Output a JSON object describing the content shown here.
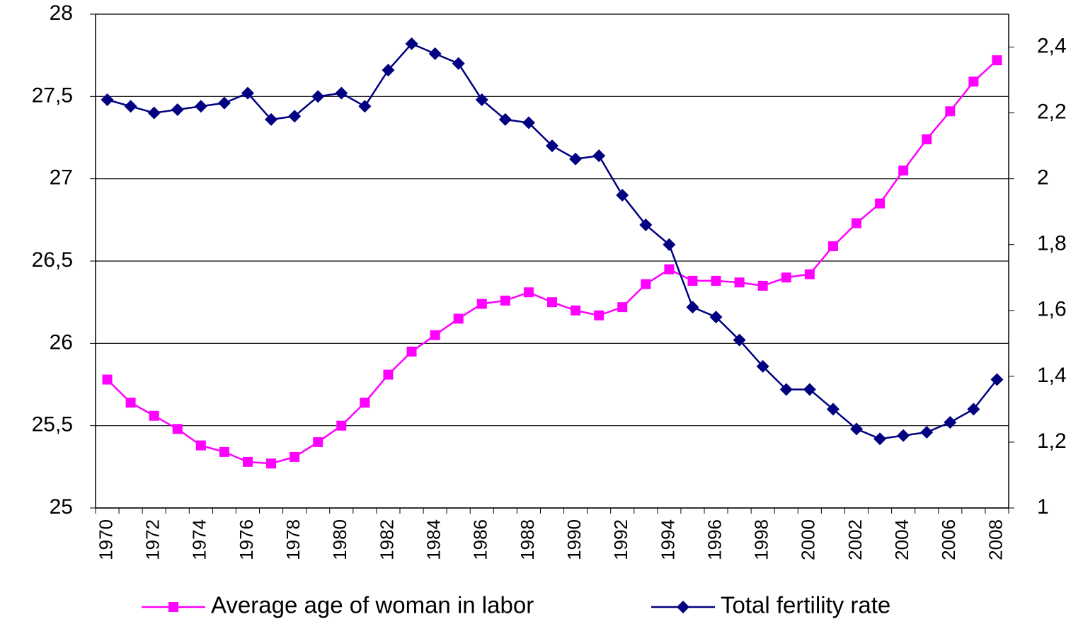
{
  "chart_data": {
    "type": "line",
    "categories": [
      "1970",
      null,
      "1972",
      null,
      "1974",
      null,
      "1976",
      null,
      "1978",
      null,
      "1980",
      null,
      "1982",
      null,
      "1984",
      null,
      "1986",
      null,
      "1988",
      null,
      "1990",
      null,
      "1992",
      null,
      "1994",
      null,
      "1996",
      null,
      "1998",
      null,
      "2000",
      null,
      "2002",
      null,
      "2004",
      null,
      "2006",
      null,
      "2008"
    ],
    "series": [
      {
        "name": "Average age of woman in labor",
        "color": "#ff00ff",
        "marker": "square",
        "values": [
          25.78,
          25.64,
          25.56,
          25.48,
          25.38,
          25.34,
          25.28,
          25.27,
          25.31,
          25.4,
          25.5,
          25.64,
          25.81,
          25.95,
          26.05,
          26.15,
          26.24,
          26.26,
          26.31,
          26.25,
          26.2,
          26.17,
          26.22,
          26.36,
          26.45,
          26.38,
          26.38,
          26.37,
          26.35,
          26.4,
          26.42,
          26.59,
          26.73,
          26.85,
          27.05,
          27.24,
          27.41,
          27.59,
          27.72
        ]
      },
      {
        "name": "Total fertility rate",
        "color": "#000080",
        "marker": "diamond",
        "axis": "y2",
        "values": [
          2.24,
          2.22,
          2.2,
          2.21,
          2.22,
          2.23,
          2.26,
          2.18,
          2.19,
          2.25,
          2.26,
          2.22,
          2.33,
          2.41,
          2.38,
          2.35,
          2.24,
          2.18,
          2.17,
          2.1,
          2.06,
          2.07,
          1.95,
          1.86,
          1.8,
          1.61,
          1.58,
          1.51,
          1.43,
          1.36,
          1.36,
          1.3,
          1.24,
          1.21,
          1.22,
          1.23,
          1.26,
          1.3,
          1.39
        ]
      }
    ],
    "ylim": [
      25,
      28
    ],
    "yticks": [
      25,
      {
        "value": 25.5,
        "label": "25,5"
      },
      26,
      {
        "value": 26.5,
        "label": "26,5"
      },
      27,
      {
        "value": 27.5,
        "label": "27,5"
      },
      28
    ],
    "y2lim": [
      1,
      2.5
    ],
    "y2ticks": [
      1,
      {
        "value": 1.2,
        "label": "1,2"
      },
      {
        "value": 1.4,
        "label": "1,4"
      },
      {
        "value": 1.6,
        "label": "1,6"
      },
      {
        "value": 1.8,
        "label": "1,8"
      },
      2,
      {
        "value": 2.2,
        "label": "2,2"
      },
      {
        "value": 2.4,
        "label": "2,4"
      }
    ],
    "grid": true,
    "legend": "bottom"
  }
}
